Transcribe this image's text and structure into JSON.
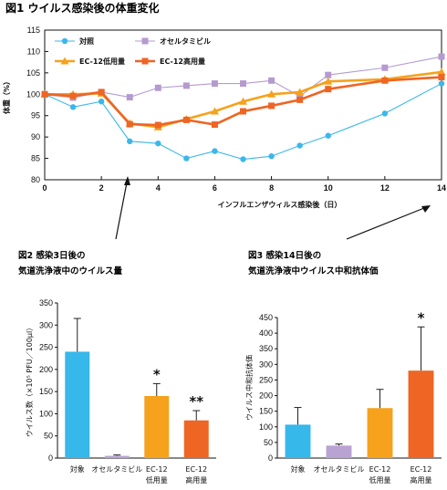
{
  "chart_data": [
    {
      "type": "line",
      "title": "図1 ウイルス感染後の体重変化",
      "xlabel": "インフルエンザウィルス感染後（日）",
      "ylabel": "体重（%）",
      "xlim": [
        0,
        14
      ],
      "ylim": [
        80,
        115
      ],
      "xticks": [
        "0",
        "2",
        "4",
        "6",
        "8",
        "10",
        "12",
        "14"
      ],
      "yticks": [
        "80",
        "85",
        "90",
        "95",
        "100",
        "105",
        "110",
        "115"
      ],
      "legend_position": "top-left",
      "x": [
        0,
        1,
        2,
        3,
        4,
        5,
        6,
        7,
        8,
        9,
        10,
        12,
        14
      ],
      "series": [
        {
          "name": "対照",
          "color": "#3bb7ea",
          "marker": "circle",
          "values": [
            100,
            97,
            98.3,
            89,
            88.5,
            85,
            86.7,
            84.8,
            85.5,
            88,
            90.3,
            95.5,
            102.5
          ]
        },
        {
          "name": "オセルタミビル",
          "color": "#b59ad0",
          "marker": "square",
          "values": [
            100,
            99.2,
            100.5,
            99.3,
            101.5,
            102,
            102.5,
            102.5,
            103.2,
            99.5,
            104.5,
            106.2,
            108.8
          ]
        },
        {
          "name": "EC-12低用量",
          "color": "#f5a21c",
          "marker": "triangle",
          "values": [
            100,
            100,
            100.2,
            93.2,
            92.3,
            94.2,
            96,
            98.3,
            100,
            100.5,
            103,
            103.5,
            105.2
          ]
        },
        {
          "name": "EC-12高用量",
          "color": "#ee6524",
          "marker": "square",
          "values": [
            100,
            99.6,
            100.5,
            93,
            92.8,
            94,
            92.9,
            96,
            97.3,
            98.7,
            101.2,
            103.2,
            104
          ]
        }
      ]
    },
    {
      "type": "bar",
      "title_line1": "図2 感染3日後の",
      "title_line2": "気道洗浄液中のウイルス量",
      "ylabel": "ウイルス数（×10⁵ PFU／100μl）",
      "ylim": [
        0,
        350
      ],
      "yticks": [
        "0",
        "50",
        "100",
        "150",
        "200",
        "250",
        "300",
        "350"
      ],
      "categories": [
        "対象",
        "オセルタミビル",
        "EC-12 低用量",
        "EC-12 高用量"
      ],
      "category_lines": [
        [
          "対象"
        ],
        [
          "オセルタミビル"
        ],
        [
          "EC-12",
          "低用量"
        ],
        [
          "EC-12",
          "高用量"
        ]
      ],
      "values": [
        240,
        5,
        140,
        85
      ],
      "errors": [
        75,
        2,
        28,
        22
      ],
      "colors": [
        "#36b8ea",
        "#b9a3d3",
        "#f6a21d",
        "#ee6524"
      ],
      "annotations": [
        "",
        "",
        "*",
        "**"
      ]
    },
    {
      "type": "bar",
      "title_line1": "図3 感染14日後の",
      "title_line2": "気道洗浄液中ウイルス中和抗体価",
      "ylabel": "ウイルス中和抗体価",
      "ylim": [
        0,
        450
      ],
      "yticks": [
        "0",
        "50",
        "100",
        "150",
        "200",
        "250",
        "300",
        "350",
        "400",
        "450"
      ],
      "categories": [
        "対象",
        "オセルタミビル",
        "EC-12 低用量",
        "EC-12 高用量"
      ],
      "category_lines": [
        [
          "対象"
        ],
        [
          "オセルタミビル"
        ],
        [
          "EC-12",
          "低用量"
        ],
        [
          "EC-12",
          "高用量"
        ]
      ],
      "values": [
        107,
        40,
        160,
        280
      ],
      "errors": [
        55,
        5,
        60,
        140
      ],
      "colors": [
        "#36b8ea",
        "#b9a3d3",
        "#f6a21d",
        "#ee6524"
      ],
      "annotations": [
        "",
        "",
        "",
        "*"
      ]
    }
  ]
}
